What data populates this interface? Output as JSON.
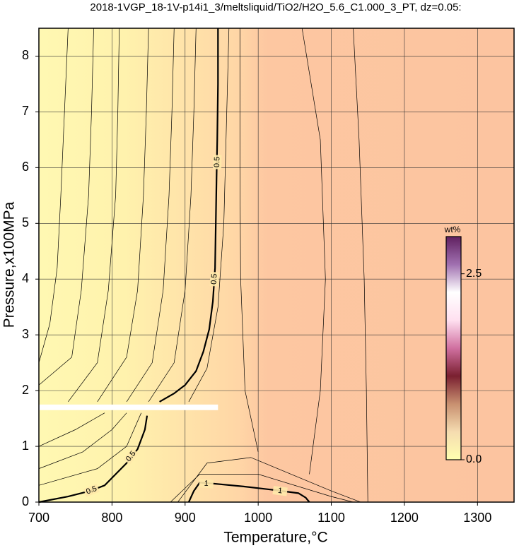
{
  "chart_data": {
    "type": "contour",
    "title": "2018-1VGP_18-1V-p14i1_3/meltsliquid/TiO2/H2O_5.6_C1.000_3_PT, dz=0.05:",
    "xlabel": "Temperature,°C",
    "ylabel": "Pressure,x100MPa",
    "xlim": [
      700,
      1350
    ],
    "ylim": [
      0,
      8.5
    ],
    "xticks": [
      700,
      800,
      900,
      1000,
      1100,
      1200,
      1300
    ],
    "yticks": [
      0,
      1,
      2,
      3,
      4,
      5,
      6,
      7,
      8
    ],
    "grid": true,
    "gap": {
      "x": [
        700,
        945
      ],
      "y": [
        1.65,
        1.75
      ]
    },
    "contours": [
      {
        "level": 0.5,
        "x": [
          865,
          885,
          900,
          915,
          925,
          933,
          938,
          941,
          942,
          943,
          944,
          945,
          945
        ],
        "y": [
          1.8,
          1.95,
          2.1,
          2.35,
          2.7,
          3.1,
          3.6,
          4.2,
          5.0,
          5.8,
          6.5,
          7.5,
          8.5
        ]
      },
      {
        "level": 0.5,
        "x": [
          700,
          740,
          770,
          790,
          805,
          820,
          835,
          845,
          848
        ],
        "y": [
          0,
          0.1,
          0.2,
          0.3,
          0.5,
          0.7,
          0.95,
          1.3,
          1.55
        ]
      },
      {
        "level": 1,
        "x": [
          905,
          912,
          920,
          940,
          980,
          1020,
          1055,
          1065,
          1070
        ],
        "y": [
          0,
          0.2,
          0.35,
          0.33,
          0.28,
          0.22,
          0.16,
          0.08,
          0
        ]
      },
      {
        "x": [
          700,
          715,
          725,
          730,
          735,
          740
        ],
        "y": [
          2.5,
          3.2,
          4.2,
          5.5,
          7,
          8.5
        ]
      },
      {
        "x": [
          700,
          745,
          758,
          768,
          772,
          775
        ],
        "y": [
          2.1,
          2.6,
          3.8,
          5.5,
          7,
          8.5
        ]
      },
      {
        "x": [
          740,
          780,
          795,
          805,
          808,
          810
        ],
        "y": [
          1.8,
          2.5,
          3.8,
          5.5,
          7,
          8.5
        ]
      },
      {
        "x": [
          780,
          820,
          835,
          843,
          847,
          850
        ],
        "y": [
          1.8,
          2.6,
          3.8,
          5.5,
          7,
          8.5
        ]
      },
      {
        "x": [
          820,
          855,
          870,
          878,
          882,
          885
        ],
        "y": [
          1.8,
          2.5,
          3.8,
          5.5,
          7,
          8.5
        ]
      },
      {
        "x": [
          850,
          885,
          900,
          908,
          912,
          915
        ],
        "y": [
          1.8,
          2.5,
          3.8,
          5.5,
          7,
          8.5
        ]
      },
      {
        "x": [
          905,
          930,
          945,
          953,
          957,
          960
        ],
        "y": [
          1.8,
          2.4,
          3.5,
          5,
          7,
          8.5
        ]
      },
      {
        "x": [
          1000,
          982,
          976,
          975,
          975
        ],
        "y": [
          0.9,
          2,
          4,
          6,
          8.5
        ]
      },
      {
        "x": [
          1070,
          1085,
          1092,
          1085,
          1060
        ],
        "y": [
          0.5,
          2,
          4,
          6.5,
          8.5
        ]
      },
      {
        "x": [
          1150,
          1148,
          1145,
          1138,
          1130
        ],
        "y": [
          0,
          2,
          4,
          6.5,
          8.5
        ]
      },
      {
        "x": [
          700,
          780,
          820,
          840
        ],
        "y": [
          0.3,
          0.6,
          1.0,
          1.6
        ]
      },
      {
        "x": [
          700,
          760,
          800,
          820
        ],
        "y": [
          0.6,
          0.9,
          1.3,
          1.6
        ]
      },
      {
        "x": [
          700,
          750,
          790
        ],
        "y": [
          1.0,
          1.3,
          1.6
        ]
      },
      {
        "x": [
          880,
          920,
          1000,
          1100,
          1130
        ],
        "y": [
          0,
          0.5,
          0.5,
          0.1,
          0
        ]
      },
      {
        "x": [
          890,
          930,
          990,
          1100,
          1140
        ],
        "y": [
          0,
          0.7,
          0.8,
          0.2,
          0
        ]
      }
    ],
    "contour_labels": [
      {
        "text": "0.5",
        "contour": 0,
        "x": 944,
        "y": 6.1
      },
      {
        "text": "0.5",
        "contour": 0,
        "x": 940,
        "y": 4.0
      },
      {
        "text": "0.5",
        "contour": 1,
        "x": 826,
        "y": 0.82
      },
      {
        "text": "0.5",
        "contour": 1,
        "x": 772,
        "y": 0.21
      },
      {
        "text": "1",
        "contour": 2,
        "x": 929,
        "y": 0.33
      },
      {
        "text": "1",
        "contour": 2,
        "x": 1030,
        "y": 0.2
      }
    ],
    "colorbar": {
      "label": "wt%",
      "lim": [
        0,
        3.0
      ],
      "ticks": [
        {
          "value": 0,
          "label": "0.0"
        },
        {
          "value": 2.5,
          "label": "2.5"
        }
      ],
      "colors": [
        "#ffffb0",
        "#f5dcb0",
        "#c89070",
        "#7a2030",
        "#d070a0",
        "#ffe0f0",
        "#ffffff",
        "#a070b0",
        "#602060"
      ]
    }
  }
}
